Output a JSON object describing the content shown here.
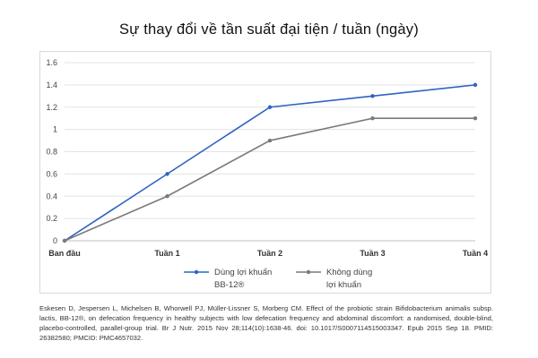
{
  "chart_data": {
    "type": "line",
    "title": "Sự thay đổi về tần suất đại tiện / tuần (ngày)",
    "categories": [
      "Ban đầu",
      "Tuần 1",
      "Tuần 2",
      "Tuần 3",
      "Tuần 4"
    ],
    "series": [
      {
        "name": "Dùng lợi khuẩn BB-12®",
        "name_lines": [
          "Dùng lợi khuẩn",
          "BB-12®"
        ],
        "color": "#2e63c4",
        "values": [
          0,
          0.6,
          1.2,
          1.3,
          1.4
        ]
      },
      {
        "name": "Không dùng lợi khuẩn",
        "name_lines": [
          "Không dùng",
          "lợi khuẩn"
        ],
        "color": "#7a7a7a",
        "values": [
          0,
          0.4,
          0.9,
          1.1,
          1.1
        ]
      }
    ],
    "ylim": [
      0,
      1.6
    ],
    "yticks": [
      "0",
      "0.2",
      "0.4",
      "0.6",
      "0.8",
      "1",
      "1.2",
      "1.4",
      "1.6"
    ],
    "grid": true,
    "legend": "bottom"
  },
  "citation": "Eskesen D, Jespersen L, Michelsen B, Whorwell PJ, Müller-Lissner S, Morberg CM. Effect of the probiotic strain Bifidobacterium animalis subsp. lactis, BB-12®, on defecation frequency in healthy subjects with low defecation frequency and abdominal discomfort: a randomised, double-blind, placebo-controlled, parallel-group trial. Br J Nutr. 2015 Nov 28;114(10):1638-46. doi: 10.1017/S0007114515003347. Epub 2015 Sep 18. PMID: 26382580; PMCID: PMC4657032."
}
